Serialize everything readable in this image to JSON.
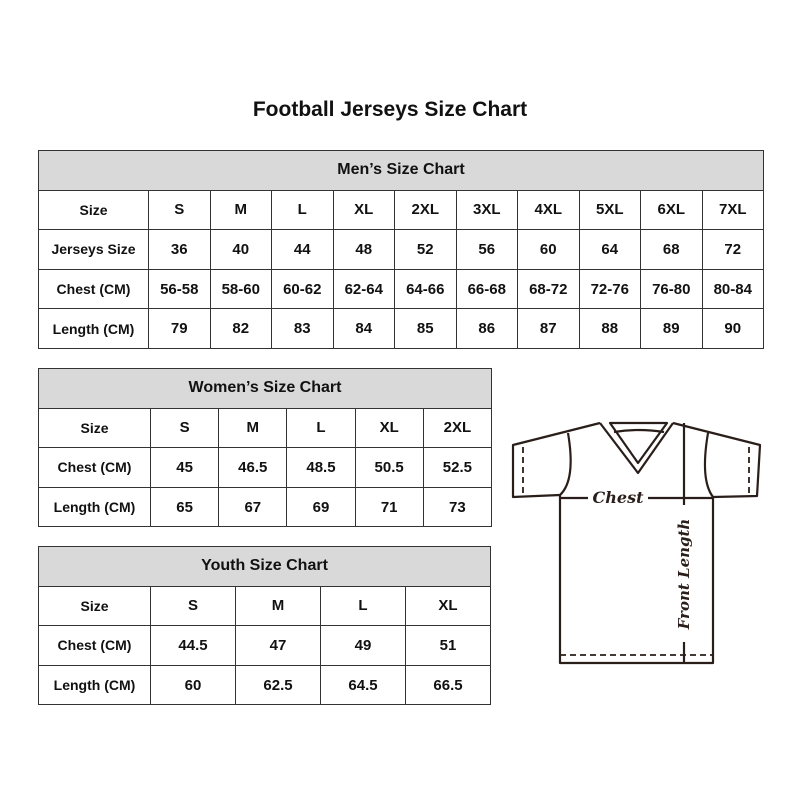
{
  "title": "Football Jerseys Size Chart",
  "men": {
    "caption": "Men’s Size Chart",
    "rows": [
      {
        "label": "Size",
        "values": [
          "S",
          "M",
          "L",
          "XL",
          "2XL",
          "3XL",
          "4XL",
          "5XL",
          "6XL",
          "7XL"
        ]
      },
      {
        "label": "Jerseys Size",
        "values": [
          "36",
          "40",
          "44",
          "48",
          "52",
          "56",
          "60",
          "64",
          "68",
          "72"
        ]
      },
      {
        "label": "Chest (CM)",
        "values": [
          "56-58",
          "58-60",
          "60-62",
          "62-64",
          "64-66",
          "66-68",
          "68-72",
          "72-76",
          "76-80",
          "80-84"
        ]
      },
      {
        "label": "Length (CM)",
        "values": [
          "79",
          "82",
          "83",
          "84",
          "85",
          "86",
          "87",
          "88",
          "89",
          "90"
        ]
      }
    ]
  },
  "women": {
    "caption": "Women’s Size Chart",
    "rows": [
      {
        "label": "Size",
        "values": [
          "S",
          "M",
          "L",
          "XL",
          "2XL"
        ]
      },
      {
        "label": "Chest (CM)",
        "values": [
          "45",
          "46.5",
          "48.5",
          "50.5",
          "52.5"
        ]
      },
      {
        "label": "Length (CM)",
        "values": [
          "65",
          "67",
          "69",
          "71",
          "73"
        ]
      }
    ]
  },
  "youth": {
    "caption": "Youth Size Chart",
    "rows": [
      {
        "label": "Size",
        "values": [
          "S",
          "M",
          "L",
          "XL"
        ]
      },
      {
        "label": "Chest (CM)",
        "values": [
          "44.5",
          "47",
          "49",
          "51"
        ]
      },
      {
        "label": "Length (CM)",
        "values": [
          "60",
          "62.5",
          "64.5",
          "66.5"
        ]
      }
    ]
  },
  "diagram": {
    "chest_label": "Chest",
    "length_label": "Front Length"
  },
  "colors": {
    "header_bg": "#d9d9d9",
    "border": "#333333"
  }
}
